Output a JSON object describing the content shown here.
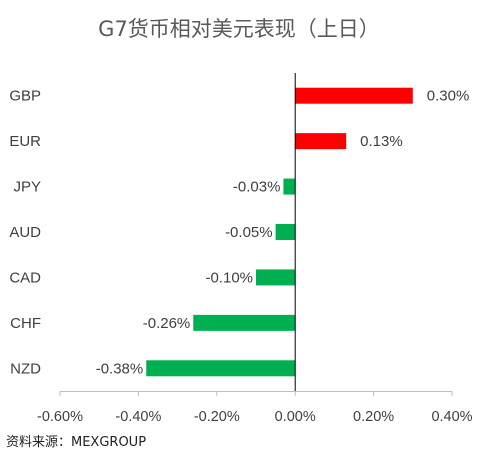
{
  "chart_data": {
    "type": "bar",
    "orientation": "horizontal",
    "title": "G7货币相对美元表现（上日）",
    "categories": [
      "GBP",
      "EUR",
      "JPY",
      "AUD",
      "CAD",
      "CHF",
      "NZD"
    ],
    "values": [
      0.3,
      0.13,
      -0.03,
      -0.05,
      -0.1,
      -0.26,
      -0.38
    ],
    "value_labels": [
      "0.30%",
      "0.13%",
      "-0.03%",
      "-0.05%",
      "-0.10%",
      "-0.26%",
      "-0.38%"
    ],
    "xlim": [
      -0.6,
      0.4
    ],
    "x_ticks": [
      -0.6,
      -0.4,
      -0.2,
      0.0,
      0.2,
      0.4
    ],
    "x_tick_labels": [
      "-0.60%",
      "-0.40%",
      "-0.20%",
      "0.00%",
      "0.20%",
      "0.40%"
    ],
    "positive_color": "#ff0000",
    "negative_color": "#00b050",
    "grid": false,
    "legend": "none"
  },
  "source": "资料来源：MEXGROUP"
}
